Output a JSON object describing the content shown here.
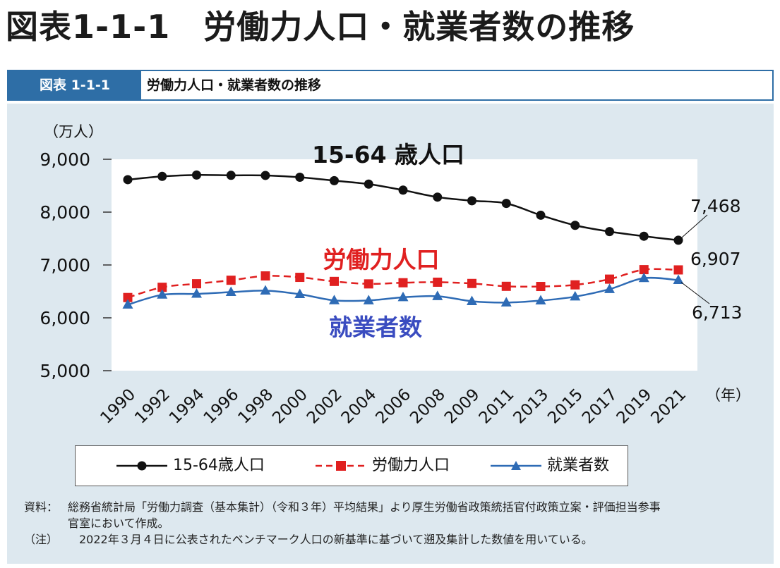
{
  "page": {
    "heading": "図表1-1-1　労働力人口・就業者数の推移"
  },
  "figure_bar": {
    "tag": "図表 1-1-1",
    "title": "労働力人口・就業者数の推移"
  },
  "colors": {
    "bar_blue": "#2e6ea6",
    "panel_bg": "#dde8ef",
    "series_pop": "#111111",
    "series_labor": "#e02020",
    "series_employed": "#2e6bb5",
    "label_labor": "#e02020",
    "label_employed": "#3a4cc0"
  },
  "chart_data": {
    "type": "line",
    "ylabel": "（万人）",
    "xlabel": "（年）",
    "ylim": [
      5000,
      9000
    ],
    "yticks": [
      9000,
      8000,
      7000,
      6000,
      5000
    ],
    "ytick_labels": [
      "9,000",
      "8,000",
      "7,000",
      "6,000",
      "5,000"
    ],
    "x": [
      "1990",
      "1992",
      "1994",
      "1996",
      "1998",
      "2000",
      "2002",
      "2004",
      "2006",
      "2008",
      "2009",
      "2011",
      "2013",
      "2015",
      "2017",
      "2019",
      "2021"
    ],
    "series": [
      {
        "name": "15-64歳人口",
        "marker": "circle",
        "line": "solid",
        "values": [
          8614,
          8676,
          8702,
          8696,
          8694,
          8660,
          8595,
          8530,
          8416,
          8284,
          8215,
          8165,
          7941,
          7750,
          7632,
          7544,
          7468
        ]
      },
      {
        "name": "労働力人口",
        "marker": "square",
        "line": "dashed",
        "values": [
          6384,
          6578,
          6645,
          6711,
          6793,
          6766,
          6689,
          6642,
          6664,
          6674,
          6650,
          6596,
          6593,
          6624,
          6732,
          6912,
          6907
        ]
      },
      {
        "name": "就業者数",
        "marker": "triangle",
        "line": "solid",
        "values": [
          6249,
          6436,
          6453,
          6486,
          6514,
          6446,
          6330,
          6329,
          6389,
          6409,
          6314,
          6289,
          6326,
          6401,
          6542,
          6750,
          6713
        ]
      }
    ],
    "annotations": {
      "pop_series_label": "15-64 歳人口",
      "labor_series_label": "労働力人口",
      "employed_series_label": "就業者数",
      "pop_end_value": "7,468",
      "labor_end_value": "6,907",
      "employed_end_value": "6,713"
    },
    "legend": {
      "position": "bottom",
      "items": [
        "15-64歳人口",
        "労働力人口",
        "就業者数"
      ]
    },
    "grid": false
  },
  "notes": {
    "source_label": "資料：",
    "source_text_1": "総務省統計局「労働力調査（基本集計）（令和３年）平均結果」より厚生労働省政策統括官付政策立案・評価担当参事",
    "source_text_2": "官室において作成。",
    "note_label": "（注）",
    "note_text": "2022年３月４日に公表されたベンチマーク人口の新基準に基づいて遡及集計した数値を用いている。"
  }
}
